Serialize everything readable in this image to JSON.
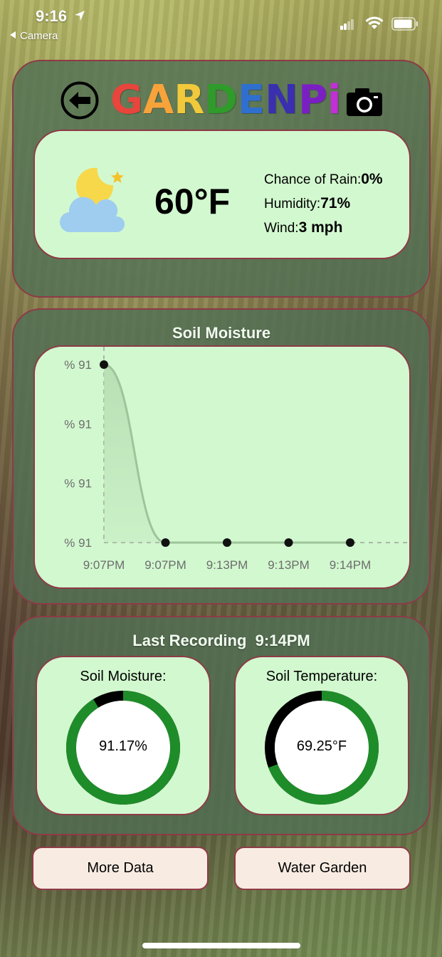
{
  "status_bar": {
    "time": "9:16",
    "back_app": "Camera"
  },
  "header": {
    "logo_letters": [
      {
        "char": "G",
        "color": "#e8453c"
      },
      {
        "char": "A",
        "color": "#f7a33a"
      },
      {
        "char": "R",
        "color": "#f1c93a"
      },
      {
        "char": "D",
        "color": "#2f9b2a"
      },
      {
        "char": "E",
        "color": "#2f6fd0"
      },
      {
        "char": "N",
        "color": "#3a2fb0"
      },
      {
        "char": "P",
        "color": "#7a1fc4"
      },
      {
        "char": "i",
        "color": "#c22fd6"
      }
    ],
    "back_icon": "arrow-left-circle-icon",
    "camera_icon": "camera-icon"
  },
  "weather": {
    "icon": "moon-cloud-icon",
    "temperature": "60°F",
    "rain_label": "Chance of Rain:",
    "rain_value": "0%",
    "humidity_label": "Humidity:",
    "humidity_value": "71%",
    "wind_label": "Wind:",
    "wind_value": "3 mph"
  },
  "soil_chart": {
    "title": "Soil Moisture"
  },
  "chart_data": {
    "type": "area",
    "title": "Soil Moisture",
    "categories": [
      "9:07PM",
      "9:07PM",
      "9:13PM",
      "9:13PM",
      "9:14PM"
    ],
    "values": [
      91.3,
      91.17,
      91.17,
      91.17,
      91.17
    ],
    "y_tick_labels": [
      "% 91",
      "% 91",
      "% 91",
      "% 91"
    ],
    "xlabel": "",
    "ylabel": "",
    "grid": false,
    "colors": {
      "line": "#9dc49a",
      "fill": "#b6dcb2",
      "point": "#111111"
    }
  },
  "last_recording": {
    "label": "Last Recording",
    "time": "9:14PM"
  },
  "gauges": {
    "moisture": {
      "title": "Soil Moisture:",
      "value_text": "91.17%",
      "fraction": 0.9117
    },
    "temperature": {
      "title": "Soil Temperature:",
      "value_text": "69.25°F",
      "fraction": 0.6925
    }
  },
  "gauge_colors": {
    "fill": "#1f8c2a",
    "track": "#000000",
    "center": "#ffffff"
  },
  "buttons": {
    "more_data": "More Data",
    "water_garden": "Water Garden"
  }
}
